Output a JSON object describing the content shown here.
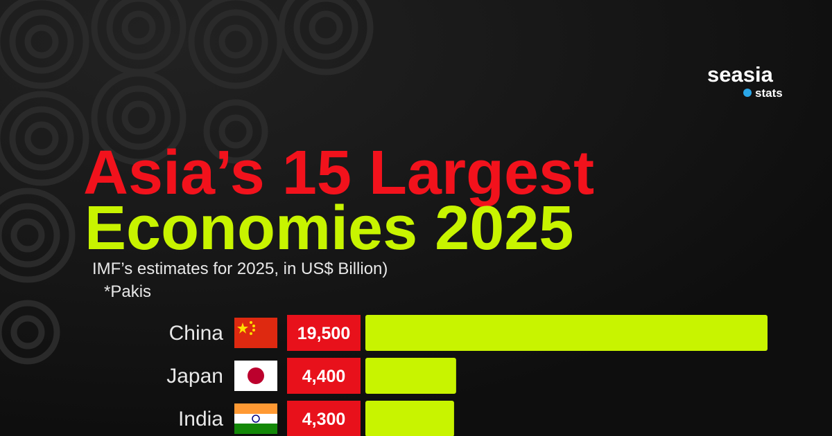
{
  "brand": {
    "name": "seasia",
    "tag": "stats"
  },
  "chart_data": {
    "type": "bar",
    "orientation": "horizontal",
    "title": [
      "Asia’s 15 Largest",
      "Economies 2025"
    ],
    "title_colors": [
      "#f2121c",
      "#c8f400"
    ],
    "subtitle": "IMF’s estimates for 2025, in US$ Billion)",
    "note": "*Pakis",
    "categories": [
      "China",
      "Japan",
      "India"
    ],
    "values": [
      19500,
      4400,
      4300
    ],
    "value_labels": [
      "19,500",
      "4,400",
      "4,300"
    ],
    "color": "#c8f400",
    "label_box_color": "#e8111b"
  }
}
